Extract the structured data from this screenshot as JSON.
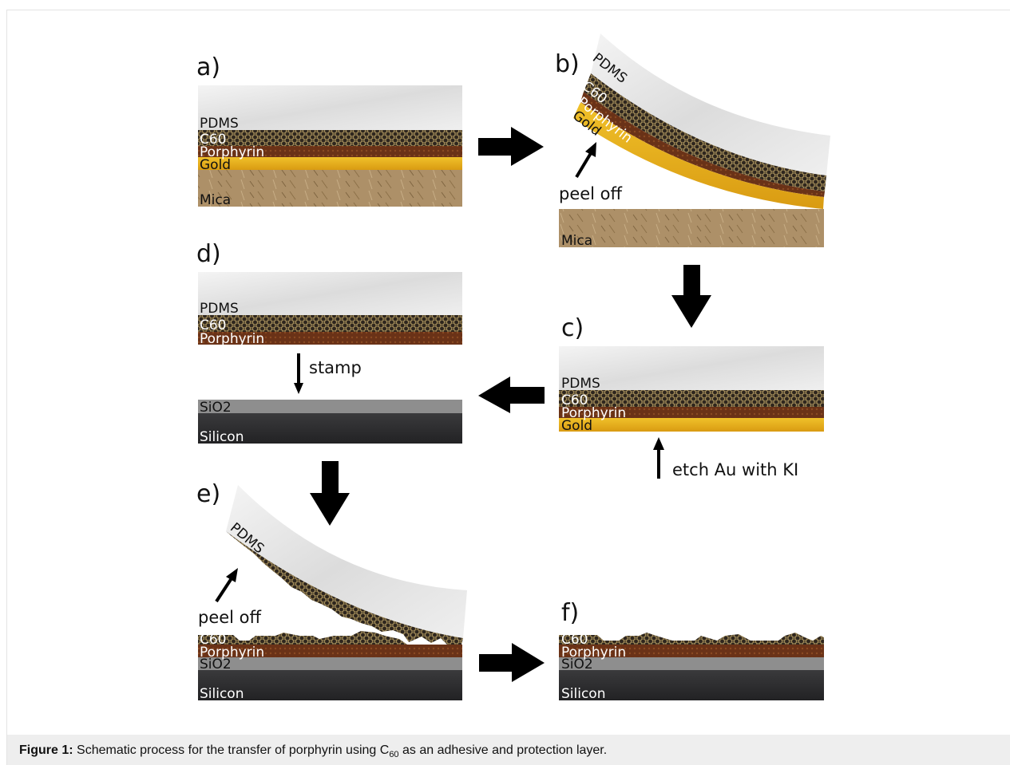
{
  "panels": {
    "a": {
      "label": "a)",
      "layers": [
        "PDMS",
        "C60",
        "Porphyrin",
        "Gold",
        "Mica"
      ]
    },
    "b": {
      "label": "b)",
      "layers": [
        "PDMS",
        "C60",
        "Porphyrin",
        "Gold"
      ],
      "mica": "Mica",
      "note": "peel off"
    },
    "c": {
      "label": "c)",
      "layers": [
        "PDMS",
        "C60",
        "Porphyrin",
        "Gold"
      ],
      "note": "etch Au with KI"
    },
    "d": {
      "label": "d)",
      "layers": [
        "PDMS",
        "C60",
        "Porphyrin"
      ],
      "note": "stamp",
      "substrate": [
        "SiO2",
        "Silicon"
      ]
    },
    "e": {
      "label": "e)",
      "top": "PDMS",
      "note": "peel off",
      "layers": [
        "C60",
        "Porphyrin",
        "SiO2",
        "Silicon"
      ]
    },
    "f": {
      "label": "f)",
      "layers": [
        "C60",
        "Porphyrin",
        "SiO2",
        "Silicon"
      ]
    }
  },
  "caption": {
    "label": "Figure 1:",
    "text_before": "Schematic process for the transfer of porphyrin using C",
    "subscript": "60",
    "text_after": "as an adhesive and protection layer."
  },
  "colors": {
    "pdms": "#e6e6e6",
    "c60": "#3a2f24",
    "porphyrin": "#6b3418",
    "gold": "#e8b31a",
    "mica": "#b0946a",
    "sio2": "#8d8d8d",
    "silicon": "#2c2c2e"
  }
}
